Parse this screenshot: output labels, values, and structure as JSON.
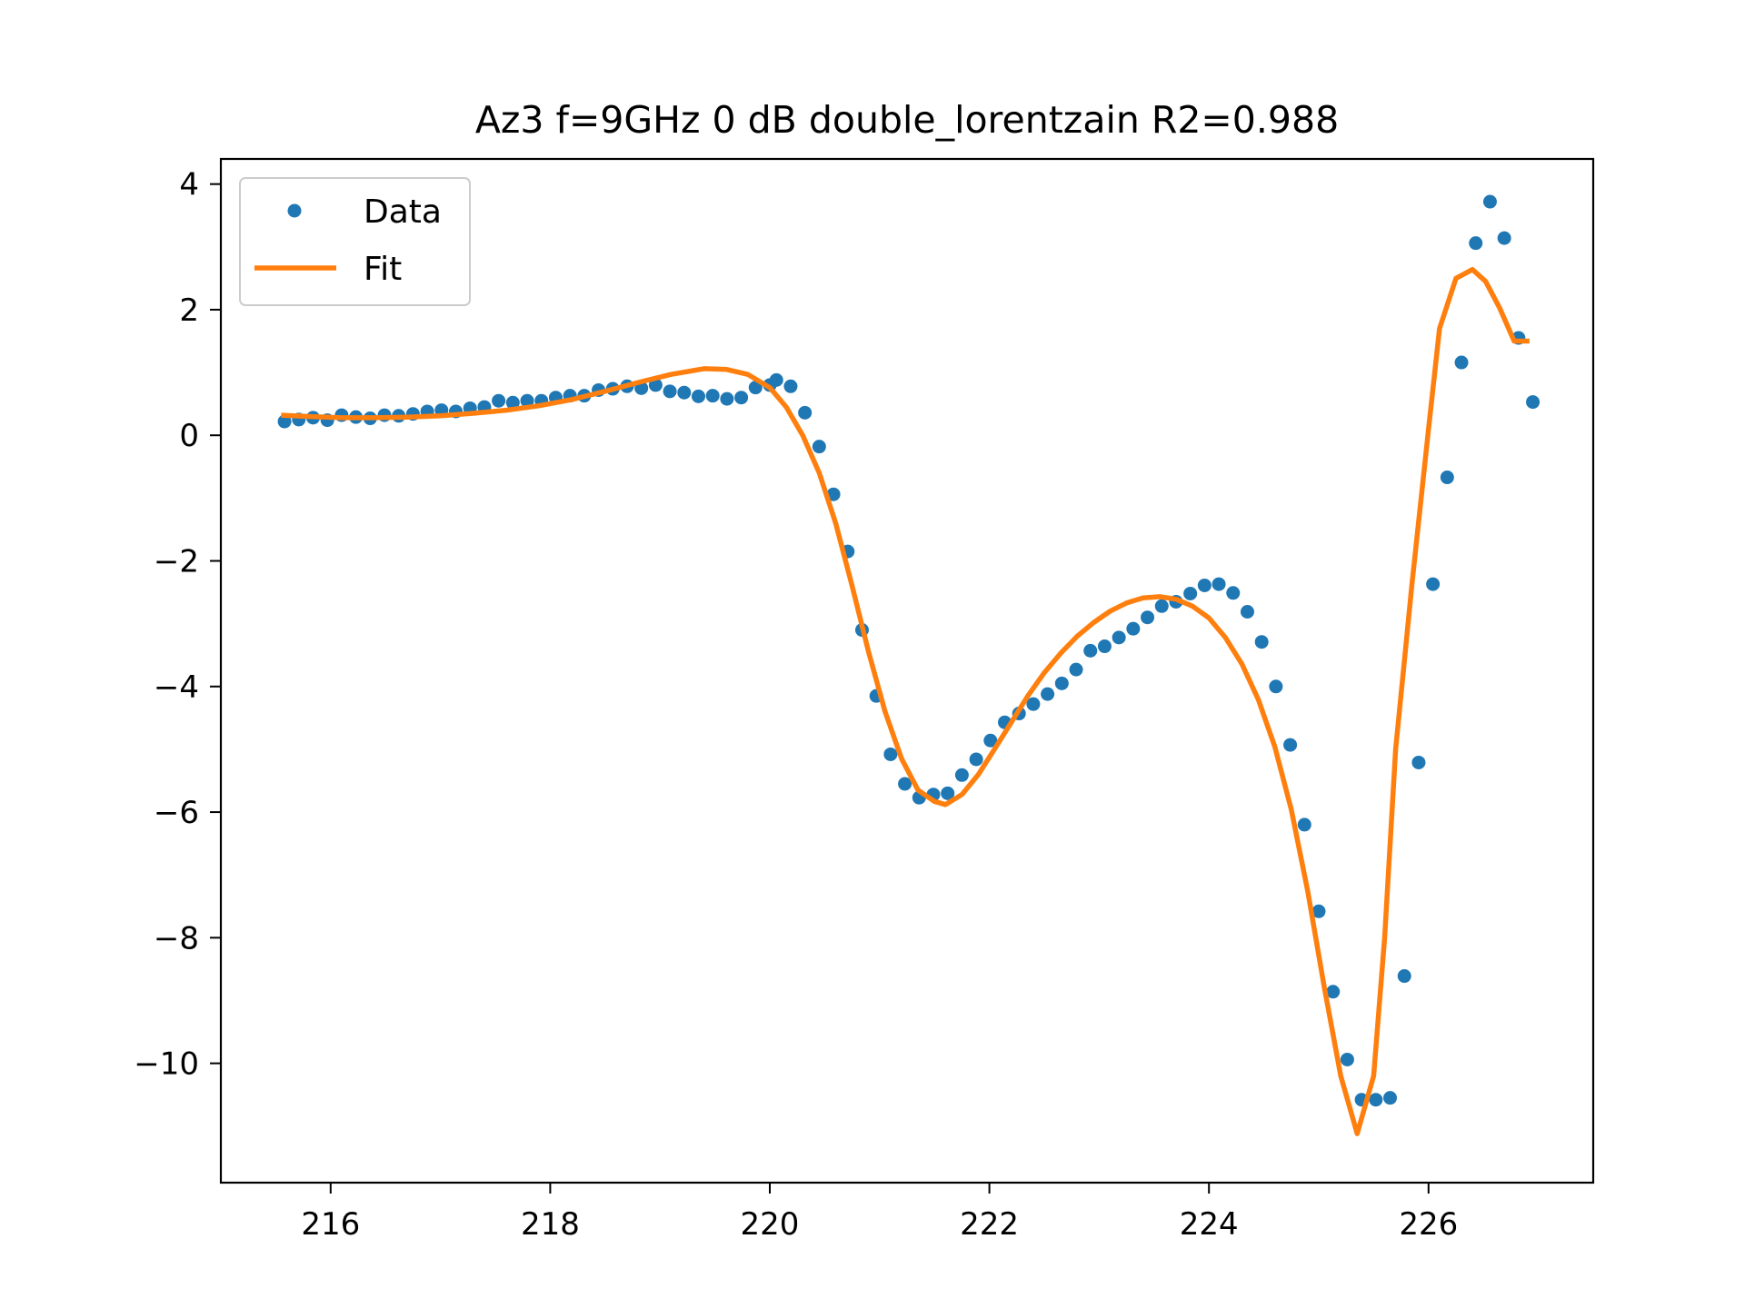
{
  "chart_data": {
    "type": "scatter",
    "title": "Az3 f=9GHz 0 dB double_lorentzain R2=0.988",
    "xlabel": "",
    "ylabel": "",
    "xlim": [
      215.0,
      227.5
    ],
    "ylim": [
      -11.9,
      4.4
    ],
    "xticks": [
      216,
      218,
      220,
      222,
      224,
      226
    ],
    "yticks": [
      4,
      2,
      0,
      -2,
      -4,
      -6,
      -8,
      -10
    ],
    "xtick_labels": [
      "216",
      "218",
      "220",
      "222",
      "224",
      "226"
    ],
    "ytick_labels": [
      "4",
      "2",
      "0",
      "−2",
      "−4",
      "−6",
      "−8",
      "−10"
    ],
    "grid": false,
    "legend_position": "upper-left",
    "series": [
      {
        "name": "Data",
        "kind": "scatter",
        "color": "#1f77b4",
        "x": [
          215.58,
          215.71,
          215.84,
          215.97,
          216.1,
          216.23,
          216.36,
          216.49,
          216.62,
          216.75,
          216.88,
          217.01,
          217.14,
          217.27,
          217.4,
          217.53,
          217.66,
          217.79,
          217.92,
          218.05,
          218.18,
          218.31,
          218.44,
          218.57,
          218.7,
          218.83,
          218.96,
          219.09,
          219.22,
          219.35,
          219.48,
          219.61,
          219.74,
          219.87,
          220.0,
          220.06,
          220.19,
          220.32,
          220.45,
          220.58,
          220.71,
          220.84,
          220.97,
          221.1,
          221.23,
          221.36,
          221.49,
          221.62,
          221.75,
          221.88,
          222.01,
          222.14,
          222.27,
          222.4,
          222.53,
          222.66,
          222.79,
          222.92,
          223.05,
          223.18,
          223.31,
          223.44,
          223.57,
          223.7,
          223.83,
          223.96,
          224.09,
          224.22,
          224.35,
          224.48,
          224.61,
          224.74,
          224.87,
          225.0,
          225.13,
          225.26,
          225.39,
          225.52,
          225.65,
          225.78,
          225.91,
          226.04,
          226.17,
          226.3,
          226.43,
          226.56,
          226.69,
          226.82,
          226.95
        ],
        "y": [
          0.22,
          0.25,
          0.28,
          0.24,
          0.32,
          0.29,
          0.27,
          0.32,
          0.31,
          0.34,
          0.38,
          0.4,
          0.38,
          0.43,
          0.45,
          0.55,
          0.52,
          0.55,
          0.55,
          0.6,
          0.63,
          0.63,
          0.72,
          0.74,
          0.78,
          0.75,
          0.8,
          0.7,
          0.68,
          0.62,
          0.63,
          0.58,
          0.6,
          0.76,
          0.8,
          0.88,
          0.78,
          0.36,
          -0.18,
          -0.94,
          -1.85,
          -3.1,
          -4.15,
          -5.08,
          -5.55,
          -5.77,
          -5.72,
          -5.7,
          -5.41,
          -5.16,
          -4.86,
          -4.57,
          -4.43,
          -4.28,
          -4.12,
          -3.95,
          -3.73,
          -3.43,
          -3.36,
          -3.22,
          -3.08,
          -2.9,
          -2.72,
          -2.65,
          -2.52,
          -2.39,
          -2.37,
          -2.51,
          -2.81,
          -3.29,
          -4.0,
          -4.93,
          -6.2,
          -7.58,
          -8.86,
          -9.94,
          -10.58,
          -10.58,
          -10.55,
          -8.61,
          -5.21,
          -2.37,
          -0.67,
          1.16,
          3.06,
          3.72,
          3.14,
          1.55,
          0.53
        ]
      },
      {
        "name": "Fit",
        "kind": "line",
        "color": "#ff7f0e",
        "x": [
          215.55,
          215.8,
          216.1,
          216.4,
          216.7,
          217.0,
          217.3,
          217.6,
          217.9,
          218.2,
          218.5,
          218.8,
          219.1,
          219.4,
          219.6,
          219.8,
          220.0,
          220.15,
          220.3,
          220.45,
          220.6,
          220.75,
          220.9,
          221.05,
          221.2,
          221.35,
          221.5,
          221.6,
          221.75,
          221.9,
          222.05,
          222.2,
          222.35,
          222.5,
          222.65,
          222.8,
          222.95,
          223.1,
          223.25,
          223.4,
          223.55,
          223.7,
          223.85,
          224.0,
          224.15,
          224.3,
          224.45,
          224.6,
          224.75,
          224.9,
          225.05,
          225.2,
          225.35,
          225.5,
          225.6,
          225.7,
          225.85,
          226.0,
          226.1,
          226.25,
          226.4,
          226.52,
          226.65,
          226.78,
          226.92
        ],
        "y": [
          0.32,
          0.3,
          0.28,
          0.28,
          0.29,
          0.31,
          0.35,
          0.4,
          0.47,
          0.57,
          0.7,
          0.84,
          0.97,
          1.06,
          1.05,
          0.97,
          0.76,
          0.45,
          0.0,
          -0.6,
          -1.4,
          -2.4,
          -3.45,
          -4.4,
          -5.15,
          -5.65,
          -5.83,
          -5.88,
          -5.72,
          -5.4,
          -4.99,
          -4.57,
          -4.15,
          -3.78,
          -3.47,
          -3.2,
          -2.98,
          -2.8,
          -2.67,
          -2.59,
          -2.57,
          -2.61,
          -2.72,
          -2.91,
          -3.22,
          -3.64,
          -4.21,
          -4.96,
          -5.96,
          -7.26,
          -8.78,
          -10.2,
          -11.12,
          -10.2,
          -8.0,
          -5.0,
          -2.35,
          0.1,
          1.7,
          2.5,
          2.64,
          2.45,
          2.02,
          1.5,
          1.5
        ]
      }
    ]
  }
}
